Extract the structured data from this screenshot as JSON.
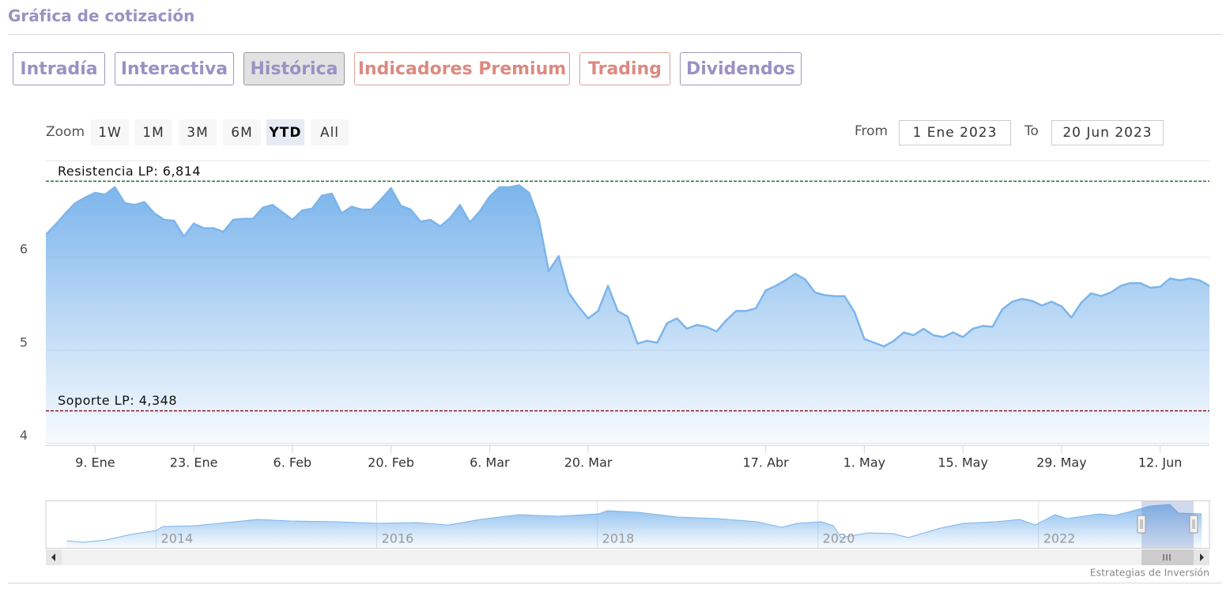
{
  "header": {
    "title": "Gráfica de cotización"
  },
  "tabs": [
    "Intradía",
    "Interactiva",
    "Histórica",
    "Indicadores Premium",
    "Trading",
    "Dividendos"
  ],
  "zoom": {
    "label": "Zoom",
    "buttons": [
      "1W",
      "1M",
      "3M",
      "6M",
      "YTD",
      "All"
    ]
  },
  "range": {
    "from_label": "From",
    "from": "1 Ene 2023",
    "to_label": "To",
    "to": "20 Jun 2023"
  },
  "chart_data": [
    {
      "type": "area",
      "categories": [
        null,
        null,
        null,
        null,
        null,
        "9. Ene",
        null,
        null,
        null,
        null,
        null,
        null,
        null,
        null,
        null,
        "23. Ene",
        null,
        null,
        null,
        null,
        null,
        null,
        null,
        null,
        null,
        "6. Feb",
        null,
        null,
        null,
        null,
        null,
        null,
        null,
        null,
        null,
        "20. Feb",
        null,
        null,
        null,
        null,
        null,
        null,
        null,
        null,
        null,
        "6. Mar",
        null,
        null,
        null,
        null,
        null,
        null,
        null,
        null,
        null,
        "20. Mar",
        null,
        null,
        null,
        null,
        null,
        null,
        null,
        null,
        null,
        null,
        null,
        null,
        null,
        null,
        null,
        null,
        null,
        "17. Abr",
        null,
        null,
        null,
        null,
        null,
        null,
        null,
        null,
        null,
        "1. May",
        null,
        null,
        null,
        null,
        null,
        null,
        null,
        null,
        null,
        "15. May",
        null,
        null,
        null,
        null,
        null,
        null,
        null,
        null,
        null,
        "29. May",
        null,
        null,
        null,
        null,
        null,
        null,
        null,
        null,
        null,
        "12. Jun",
        null,
        null,
        null,
        null,
        null
      ],
      "values": [
        6.24,
        6.35,
        6.47,
        6.58,
        6.64,
        6.69,
        6.67,
        6.75,
        6.58,
        6.56,
        6.59,
        6.47,
        6.4,
        6.39,
        6.22,
        6.36,
        6.31,
        6.31,
        6.27,
        6.4,
        6.41,
        6.41,
        6.53,
        6.56,
        6.48,
        6.4,
        6.5,
        6.52,
        6.66,
        6.68,
        6.47,
        6.54,
        6.51,
        6.51,
        6.62,
        6.74,
        6.55,
        6.51,
        6.38,
        6.4,
        6.33,
        6.42,
        6.56,
        6.37,
        6.49,
        6.65,
        6.75,
        6.75,
        6.77,
        6.69,
        6.4,
        5.85,
        6.01,
        5.62,
        5.47,
        5.34,
        5.42,
        5.69,
        5.42,
        5.36,
        5.07,
        5.1,
        5.08,
        5.29,
        5.34,
        5.23,
        5.27,
        5.25,
        5.2,
        5.32,
        5.42,
        5.42,
        5.45,
        5.64,
        5.69,
        5.75,
        5.82,
        5.76,
        5.62,
        5.59,
        5.58,
        5.58,
        5.41,
        5.12,
        5.08,
        5.04,
        5.1,
        5.19,
        5.16,
        5.23,
        5.16,
        5.14,
        5.19,
        5.14,
        5.23,
        5.26,
        5.25,
        5.44,
        5.52,
        5.55,
        5.53,
        5.48,
        5.52,
        5.47,
        5.35,
        5.51,
        5.61,
        5.58,
        5.62,
        5.69,
        5.72,
        5.72,
        5.67,
        5.68,
        5.77,
        5.75,
        5.77,
        5.75,
        5.69
      ],
      "color": "#7cb5ec",
      "ylim": [
        3.98,
        7.02
      ],
      "yticks": [
        4,
        5,
        6
      ],
      "grid": true,
      "annotations": [
        {
          "label": "Resistencia LP: 6,814",
          "value": 6.814,
          "color": "#1e7b34"
        },
        {
          "label": "Soporte LP: 4,348",
          "value": 4.348,
          "color": "#8b1a2b"
        }
      ]
    },
    {
      "type": "area",
      "x": [
        2013.19,
        2013.34,
        2013.55,
        2013.77,
        2014.0,
        2014.06,
        2014.35,
        2014.71,
        2014.92,
        2015.21,
        2015.64,
        2016.0,
        2016.36,
        2016.65,
        2016.94,
        2017.29,
        2017.65,
        2018.01,
        2018.09,
        2018.37,
        2018.73,
        2019.09,
        2019.45,
        2019.67,
        2019.81,
        2020.03,
        2020.14,
        2020.21,
        2020.46,
        2020.68,
        2020.82,
        2021.11,
        2021.32,
        2021.61,
        2021.83,
        2021.97,
        2022.15,
        2022.26,
        2022.55,
        2022.69,
        2022.83,
        2023.01,
        2023.19,
        2023.27,
        2023.48
      ],
      "values": [
        1.14,
        0.89,
        1.27,
        2.16,
        2.8,
        3.43,
        3.56,
        4.19,
        4.57,
        4.32,
        4.19,
        3.94,
        4.07,
        3.68,
        4.57,
        5.34,
        5.08,
        5.46,
        5.97,
        5.72,
        4.96,
        4.7,
        4.19,
        3.3,
        3.94,
        4.19,
        3.56,
        1.65,
        2.41,
        2.29,
        1.65,
        3.18,
        3.94,
        4.19,
        4.57,
        3.68,
        5.34,
        4.7,
        5.46,
        5.21,
        5.84,
        6.73,
        6.99,
        5.59,
        5.46
      ],
      "color": "#7cb5ec",
      "xlim": [
        2013,
        2023.55
      ],
      "xticks": [
        2014,
        2016,
        2018,
        2020,
        2022
      ],
      "ylim": [
        0,
        7.5
      ]
    }
  ],
  "footer": "Estrategias de Inversión"
}
